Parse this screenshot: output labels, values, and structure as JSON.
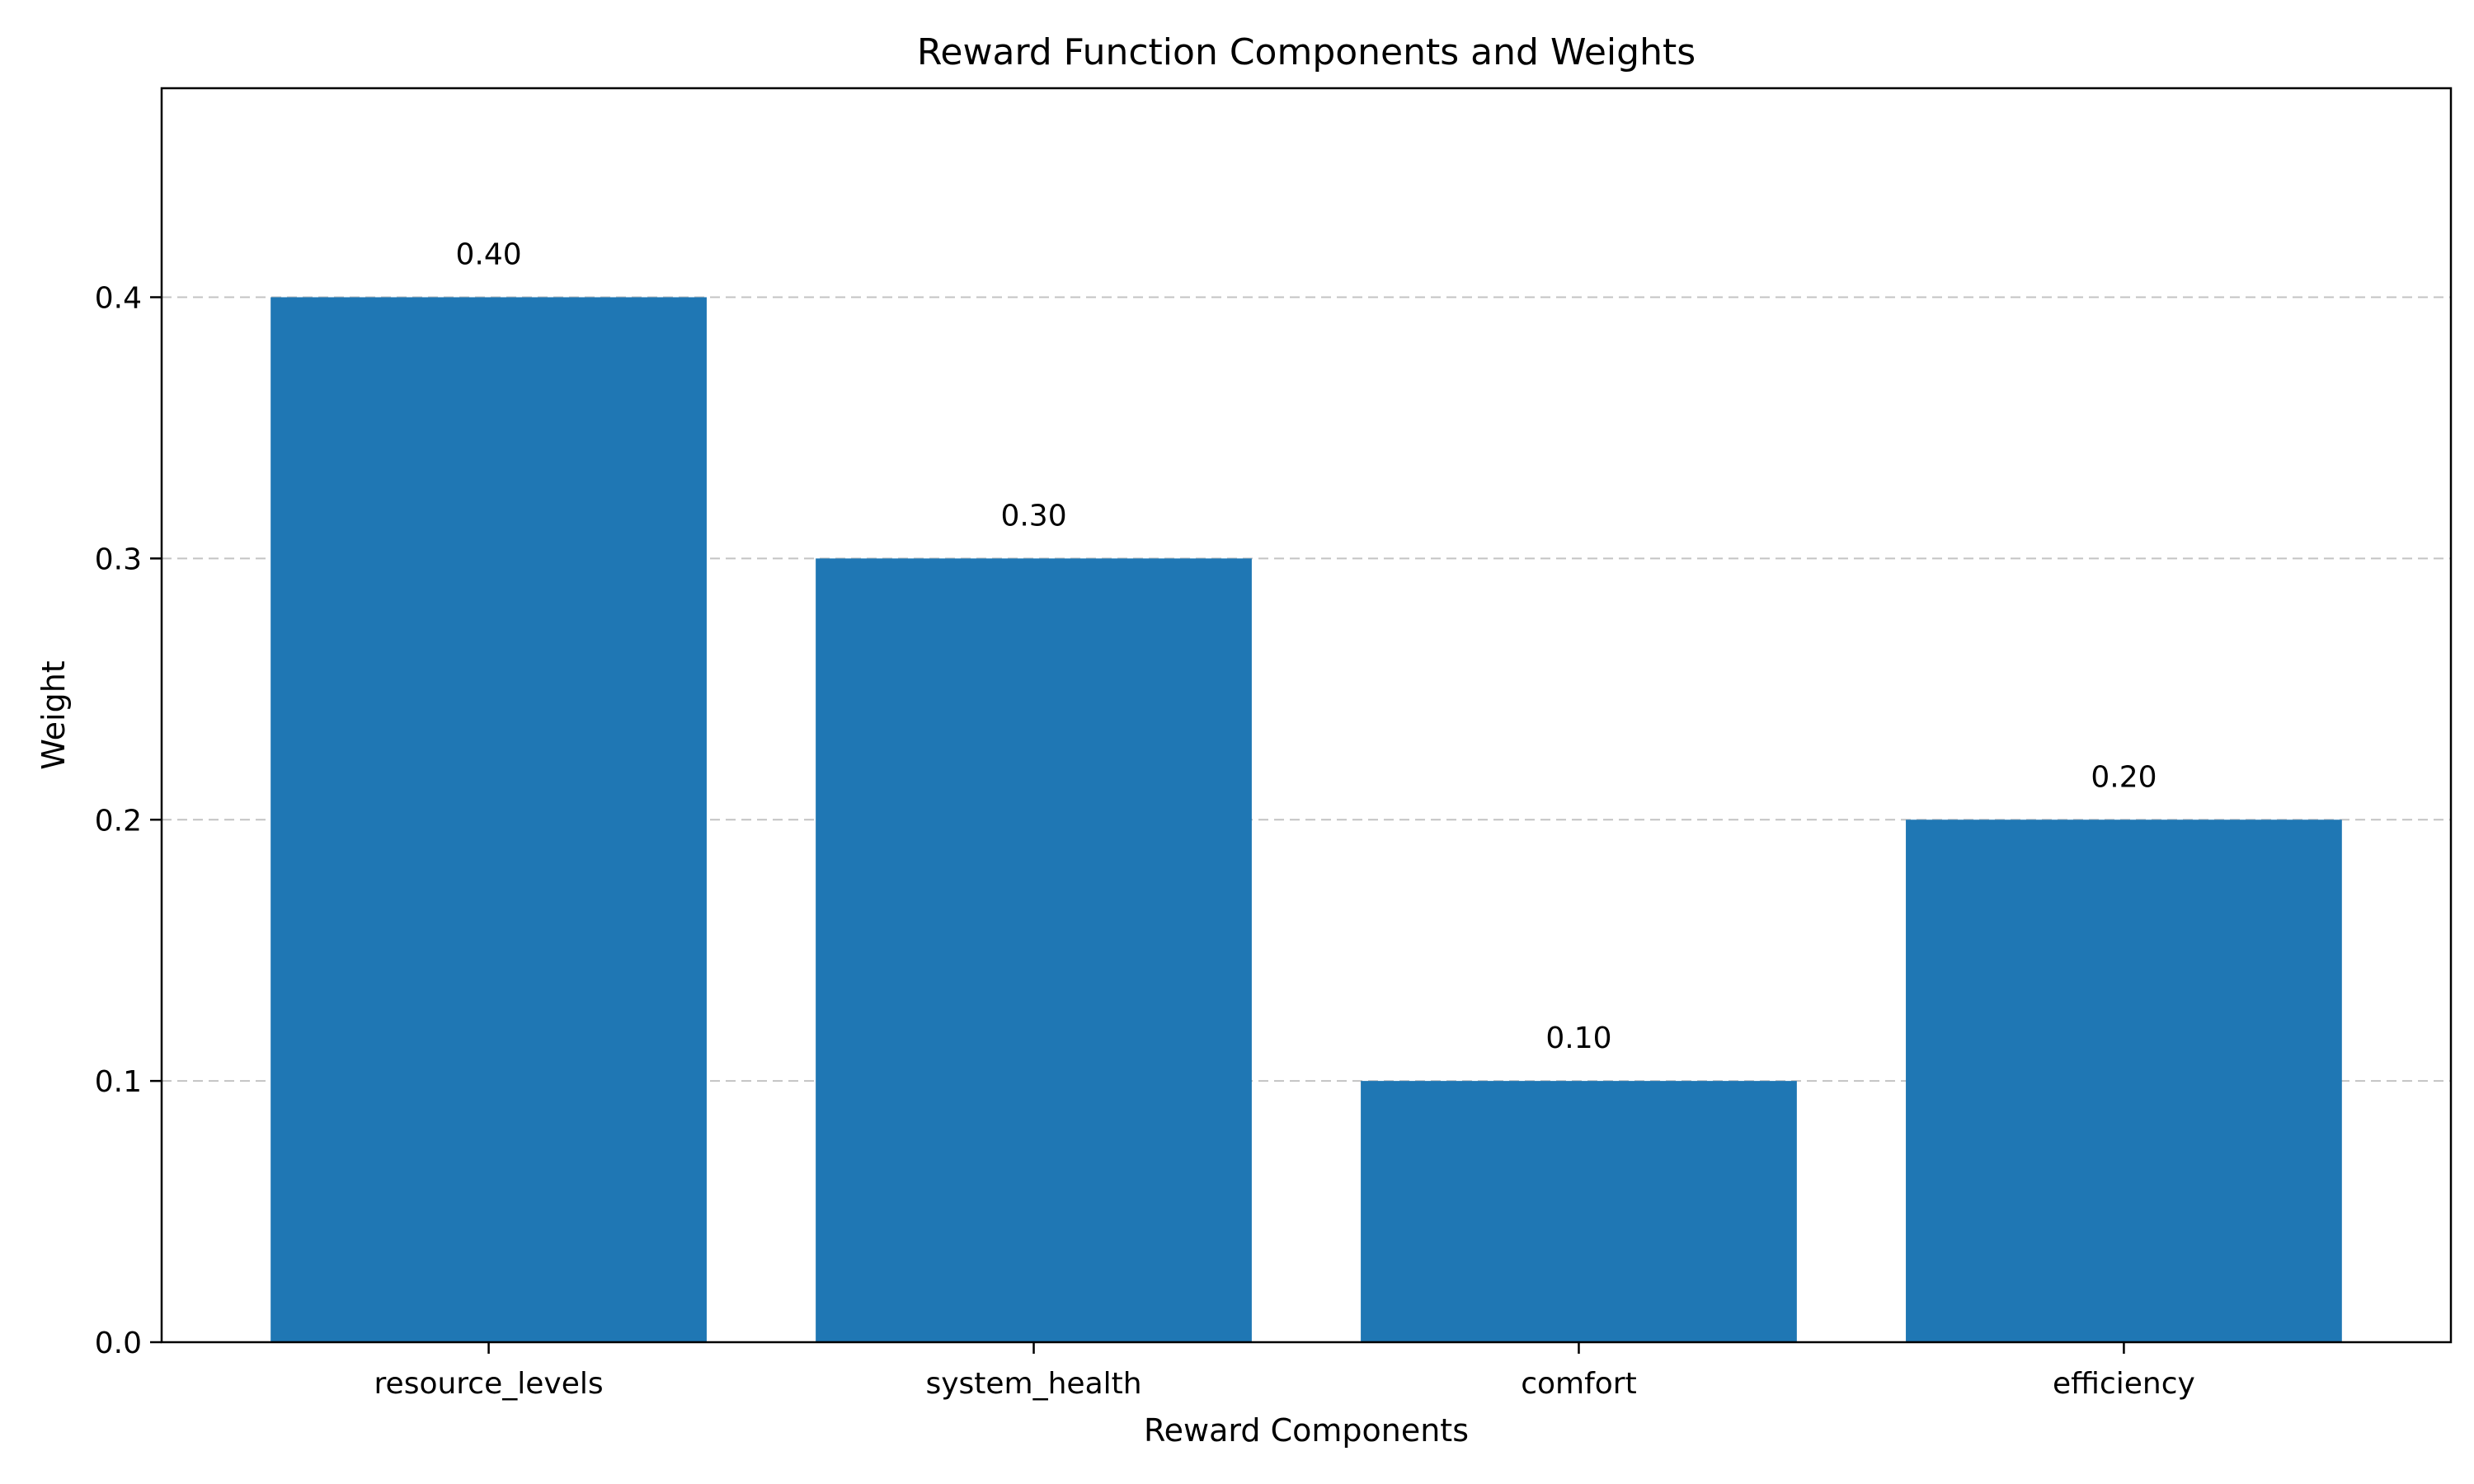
{
  "chart_data": {
    "type": "bar",
    "title": "Reward Function Components and Weights",
    "xlabel": "Reward Components",
    "ylabel": "Weight",
    "categories": [
      "resource_levels",
      "system_health",
      "comfort",
      "efficiency"
    ],
    "values": [
      0.4,
      0.3,
      0.1,
      0.2
    ],
    "data_labels": [
      "0.40",
      "0.30",
      "0.10",
      "0.20"
    ],
    "ylim": [
      0,
      0.48
    ],
    "yticks": [
      0.0,
      0.1,
      0.2,
      0.3,
      0.4
    ],
    "ytick_labels": [
      "0.0",
      "0.1",
      "0.2",
      "0.3",
      "0.4"
    ],
    "grid": "y-dashed",
    "bar_color": "#1f77b4"
  }
}
